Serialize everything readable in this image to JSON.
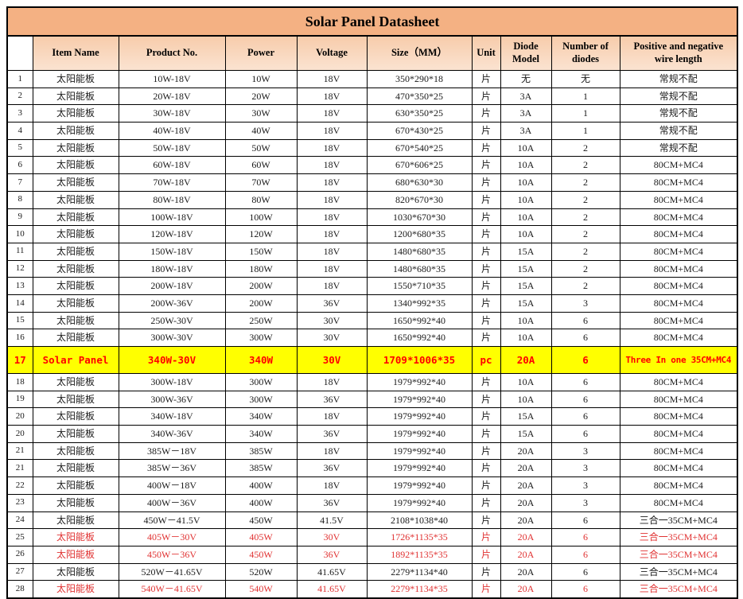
{
  "title": "Solar Panel Datasheet",
  "columns": {
    "num": "",
    "item": "Item Name",
    "product": "Product No.",
    "power": "Power",
    "voltage": "Voltage",
    "size": "Size（MM）",
    "unit": "Unit",
    "diode": "Diode Model",
    "count": "Number of diodes",
    "wire": "Positive and negative wire length"
  },
  "colors": {
    "title_bg": "#f4b183",
    "header_bg": "#fbe3d1",
    "highlight_bg": "#ffff00",
    "highlight_text": "#ff0000",
    "red_text": "#e03131",
    "border": "#000000"
  },
  "rows": [
    {
      "no": "1",
      "item": "太阳能板",
      "product": "10W-18V",
      "power": "10W",
      "voltage": "18V",
      "size": "350*290*18",
      "unit": "片",
      "diode": "无",
      "count": "无",
      "wire": "常规不配",
      "style": "normal"
    },
    {
      "no": "2",
      "item": "太阳能板",
      "product": "20W-18V",
      "power": "20W",
      "voltage": "18V",
      "size": "470*350*25",
      "unit": "片",
      "diode": "3A",
      "count": "1",
      "wire": "常规不配",
      "style": "normal"
    },
    {
      "no": "3",
      "item": "太阳能板",
      "product": "30W-18V",
      "power": "30W",
      "voltage": "18V",
      "size": "630*350*25",
      "unit": "片",
      "diode": "3A",
      "count": "1",
      "wire": "常规不配",
      "style": "normal"
    },
    {
      "no": "4",
      "item": "太阳能板",
      "product": "40W-18V",
      "power": "40W",
      "voltage": "18V",
      "size": "670*430*25",
      "unit": "片",
      "diode": "3A",
      "count": "1",
      "wire": "常规不配",
      "style": "normal"
    },
    {
      "no": "5",
      "item": "太阳能板",
      "product": "50W-18V",
      "power": "50W",
      "voltage": "18V",
      "size": "670*540*25",
      "unit": "片",
      "diode": "10A",
      "count": "2",
      "wire": "常规不配",
      "style": "normal"
    },
    {
      "no": "6",
      "item": "太阳能板",
      "product": "60W-18V",
      "power": "60W",
      "voltage": "18V",
      "size": "670*606*25",
      "unit": "片",
      "diode": "10A",
      "count": "2",
      "wire": "80CM+MC4",
      "style": "normal"
    },
    {
      "no": "7",
      "item": "太阳能板",
      "product": "70W-18V",
      "power": "70W",
      "voltage": "18V",
      "size": "680*630*30",
      "unit": "片",
      "diode": "10A",
      "count": "2",
      "wire": "80CM+MC4",
      "style": "normal"
    },
    {
      "no": "8",
      "item": "太阳能板",
      "product": "80W-18V",
      "power": "80W",
      "voltage": "18V",
      "size": "820*670*30",
      "unit": "片",
      "diode": "10A",
      "count": "2",
      "wire": "80CM+MC4",
      "style": "normal"
    },
    {
      "no": "9",
      "item": "太阳能板",
      "product": "100W-18V",
      "power": "100W",
      "voltage": "18V",
      "size": "1030*670*30",
      "unit": "片",
      "diode": "10A",
      "count": "2",
      "wire": "80CM+MC4",
      "style": "normal"
    },
    {
      "no": "10",
      "item": "太阳能板",
      "product": "120W-18V",
      "power": "120W",
      "voltage": "18V",
      "size": "1200*680*35",
      "unit": "片",
      "diode": "10A",
      "count": "2",
      "wire": "80CM+MC4",
      "style": "normal"
    },
    {
      "no": "11",
      "item": "太阳能板",
      "product": "150W-18V",
      "power": "150W",
      "voltage": "18V",
      "size": "1480*680*35",
      "unit": "片",
      "diode": "15A",
      "count": "2",
      "wire": "80CM+MC4",
      "style": "normal"
    },
    {
      "no": "12",
      "item": "太阳能板",
      "product": "180W-18V",
      "power": "180W",
      "voltage": "18V",
      "size": "1480*680*35",
      "unit": "片",
      "diode": "15A",
      "count": "2",
      "wire": "80CM+MC4",
      "style": "normal"
    },
    {
      "no": "13",
      "item": "太阳能板",
      "product": "200W-18V",
      "power": "200W",
      "voltage": "18V",
      "size": "1550*710*35",
      "unit": "片",
      "diode": "15A",
      "count": "2",
      "wire": "80CM+MC4",
      "style": "normal"
    },
    {
      "no": "14",
      "item": "太阳能板",
      "product": "200W-36V",
      "power": "200W",
      "voltage": "36V",
      "size": "1340*992*35",
      "unit": "片",
      "diode": "15A",
      "count": "3",
      "wire": "80CM+MC4",
      "style": "normal"
    },
    {
      "no": "15",
      "item": "太阳能板",
      "product": "250W-30V",
      "power": "250W",
      "voltage": "30V",
      "size": "1650*992*40",
      "unit": "片",
      "diode": "10A",
      "count": "6",
      "wire": "80CM+MC4",
      "style": "normal"
    },
    {
      "no": "16",
      "item": "太阳能板",
      "product": "300W-30V",
      "power": "300W",
      "voltage": "30V",
      "size": "1650*992*40",
      "unit": "片",
      "diode": "10A",
      "count": "6",
      "wire": "80CM+MC4",
      "style": "normal"
    },
    {
      "no": "17",
      "item": "Solar Panel",
      "product": "340W-30V",
      "power": "340W",
      "voltage": "30V",
      "size": "1709*1006*35",
      "unit": "pc",
      "diode": "20A",
      "count": "6",
      "wire": "Three In one 35CM+MC4",
      "style": "highlight"
    },
    {
      "no": "18",
      "item": "太阳能板",
      "product": "300W-18V",
      "power": "300W",
      "voltage": "18V",
      "size": "1979*992*40",
      "unit": "片",
      "diode": "10A",
      "count": "6",
      "wire": "80CM+MC4",
      "style": "normal"
    },
    {
      "no": "19",
      "item": "太阳能板",
      "product": "300W-36V",
      "power": "300W",
      "voltage": "36V",
      "size": "1979*992*40",
      "unit": "片",
      "diode": "10A",
      "count": "6",
      "wire": "80CM+MC4",
      "style": "normal"
    },
    {
      "no": "20",
      "item": "太阳能板",
      "product": "340W-18V",
      "power": "340W",
      "voltage": "18V",
      "size": "1979*992*40",
      "unit": "片",
      "diode": "15A",
      "count": "6",
      "wire": "80CM+MC4",
      "style": "normal"
    },
    {
      "no": "20",
      "item": "太阳能板",
      "product": "340W-36V",
      "power": "340W",
      "voltage": "36V",
      "size": "1979*992*40",
      "unit": "片",
      "diode": "15A",
      "count": "6",
      "wire": "80CM+MC4",
      "style": "normal"
    },
    {
      "no": "21",
      "item": "太阳能板",
      "product": "385W－18V",
      "power": "385W",
      "voltage": "18V",
      "size": "1979*992*40",
      "unit": "片",
      "diode": "20A",
      "count": "3",
      "wire": "80CM+MC4",
      "style": "normal"
    },
    {
      "no": "21",
      "item": "太阳能板",
      "product": "385W－36V",
      "power": "385W",
      "voltage": "36V",
      "size": "1979*992*40",
      "unit": "片",
      "diode": "20A",
      "count": "3",
      "wire": "80CM+MC4",
      "style": "normal"
    },
    {
      "no": "22",
      "item": "太阳能板",
      "product": "400W－18V",
      "power": "400W",
      "voltage": "18V",
      "size": "1979*992*40",
      "unit": "片",
      "diode": "20A",
      "count": "3",
      "wire": "80CM+MC4",
      "style": "normal"
    },
    {
      "no": "23",
      "item": "太阳能板",
      "product": "400W－36V",
      "power": "400W",
      "voltage": "36V",
      "size": "1979*992*40",
      "unit": "片",
      "diode": "20A",
      "count": "3",
      "wire": "80CM+MC4",
      "style": "normal"
    },
    {
      "no": "24",
      "item": "太阳能板",
      "product": "450W－41.5V",
      "power": "450W",
      "voltage": "41.5V",
      "size": "2108*1038*40",
      "unit": "片",
      "diode": "20A",
      "count": "6",
      "wire": "三合一35CM+MC4",
      "style": "normal"
    },
    {
      "no": "25",
      "item": "太阳能板",
      "product": "405W－30V",
      "power": "405W",
      "voltage": "30V",
      "size": "1726*1135*35",
      "unit": "片",
      "diode": "20A",
      "count": "6",
      "wire": "三合一35CM+MC4",
      "style": "red"
    },
    {
      "no": "26",
      "item": "太阳能板",
      "product": "450W－36V",
      "power": "450W",
      "voltage": "36V",
      "size": "1892*1135*35",
      "unit": "片",
      "diode": "20A",
      "count": "6",
      "wire": "三合一35CM+MC4",
      "style": "red"
    },
    {
      "no": "27",
      "item": "太阳能板",
      "product": "520W－41.65V",
      "power": "520W",
      "voltage": "41.65V",
      "size": "2279*1134*40",
      "unit": "片",
      "diode": "20A",
      "count": "6",
      "wire": "三合一35CM+MC4",
      "style": "normal"
    },
    {
      "no": "28",
      "item": "太阳能板",
      "product": "540W－41.65V",
      "power": "540W",
      "voltage": "41.65V",
      "size": "2279*1134*35",
      "unit": "片",
      "diode": "20A",
      "count": "6",
      "wire": "三合一35CM+MC4",
      "style": "red"
    }
  ]
}
